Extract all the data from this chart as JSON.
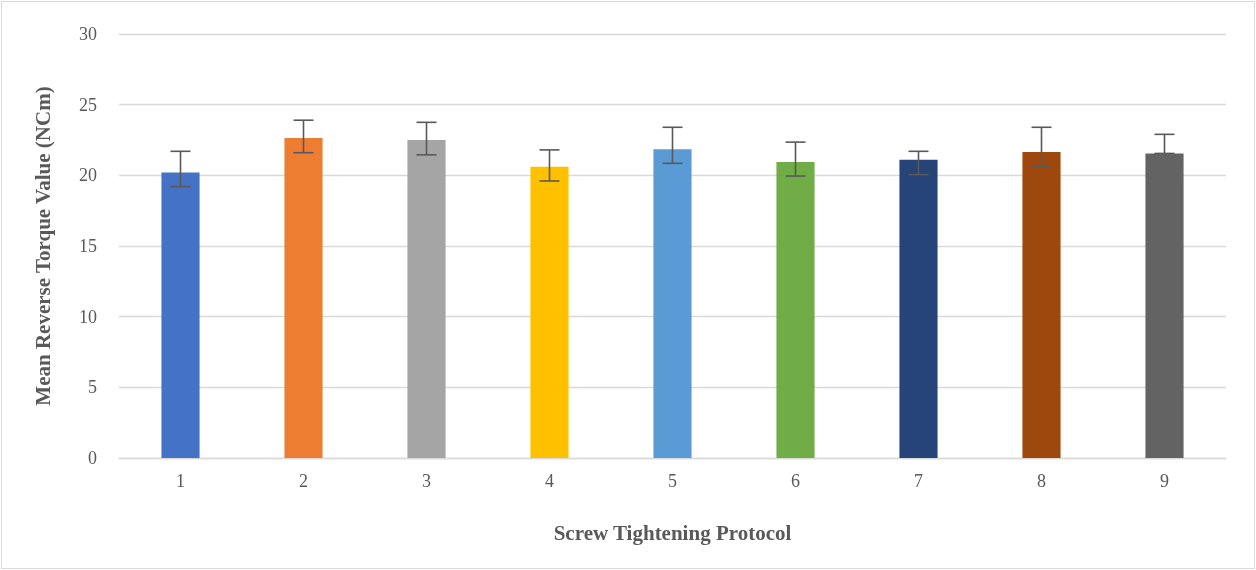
{
  "chart_data": {
    "type": "bar",
    "xlabel": "Screw Tightening Protocol",
    "ylabel": "Mean Reverse Torque Value (NCm)",
    "categories": [
      "1",
      "2",
      "3",
      "4",
      "5",
      "6",
      "7",
      "8",
      "9"
    ],
    "values": [
      20.2,
      22.65,
      22.5,
      20.6,
      21.85,
      20.95,
      21.1,
      21.65,
      21.55
    ],
    "colors": [
      "#4472c4",
      "#ed7d31",
      "#a5a5a5",
      "#ffc000",
      "#5b9bd5",
      "#70ad47",
      "#264478",
      "#9e480e",
      "#636363"
    ],
    "errors": [
      [
        19.2,
        21.7
      ],
      [
        21.6,
        23.9
      ],
      [
        21.45,
        23.75
      ],
      [
        19.6,
        21.8
      ],
      [
        20.85,
        23.4
      ],
      [
        19.95,
        22.35
      ],
      [
        20.05,
        21.7
      ],
      [
        20.6,
        23.4
      ],
      [
        21.55,
        22.9
      ]
    ],
    "ylim": [
      0,
      30
    ],
    "yticks": [
      0,
      5,
      10,
      15,
      20,
      25,
      30
    ],
    "grid": "y"
  }
}
